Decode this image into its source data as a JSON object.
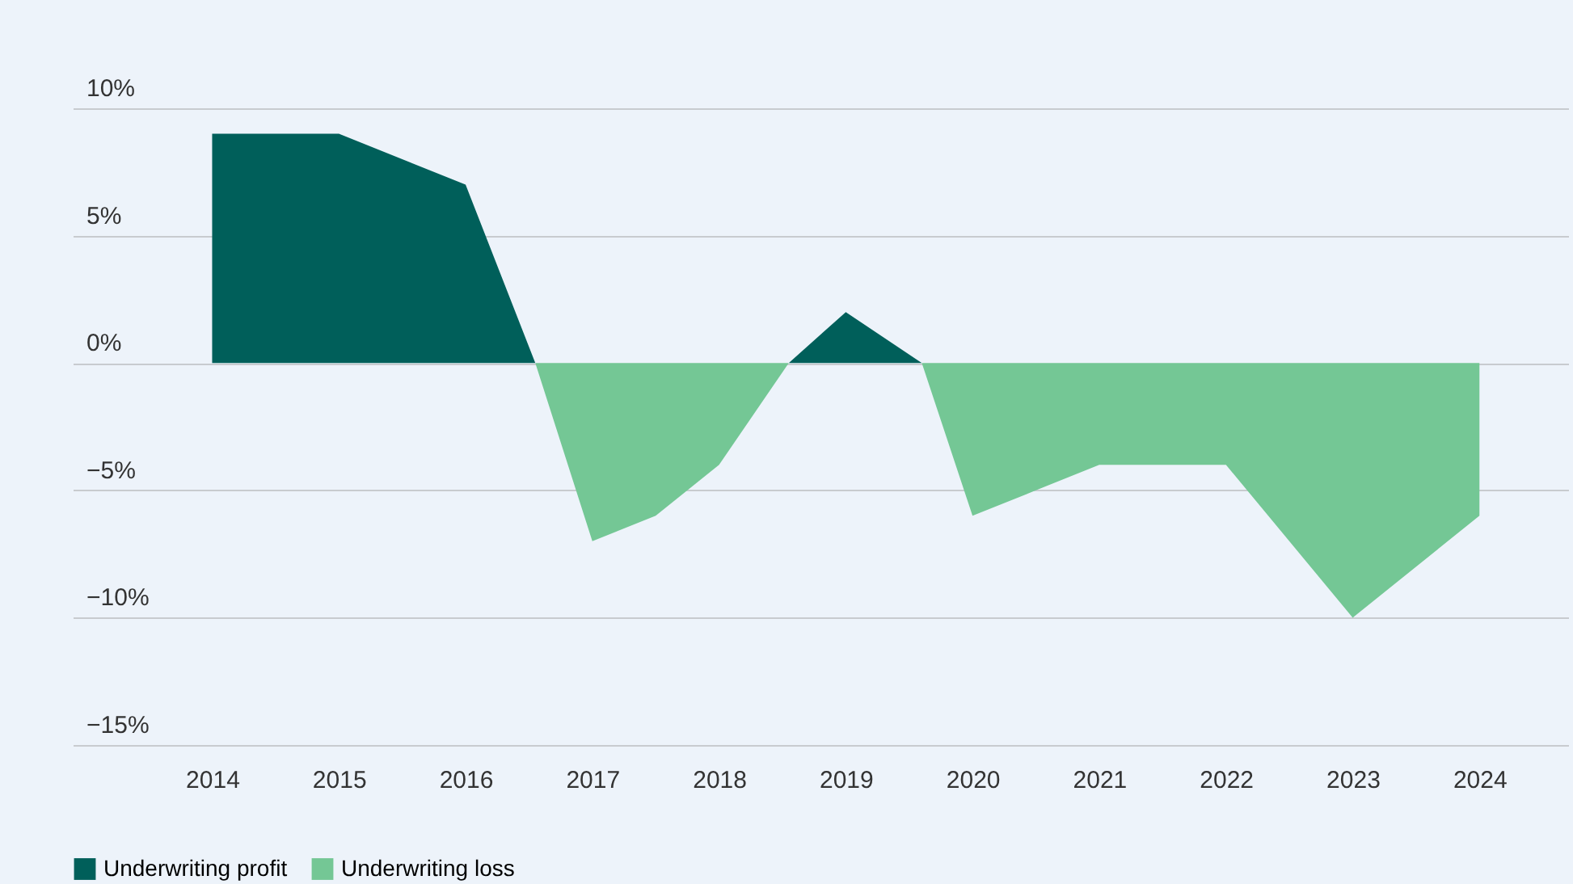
{
  "chart_data": {
    "type": "area",
    "xlim": [
      2012.9,
      2024.7
    ],
    "xticks": [
      2014,
      2015,
      2016,
      2017,
      2018,
      2019,
      2020,
      2021,
      2022,
      2023,
      2024
    ],
    "ylim": [
      -15,
      10
    ],
    "yticks": [
      {
        "value": 10,
        "label": "10%"
      },
      {
        "value": 5,
        "label": "5%"
      },
      {
        "value": 0,
        "label": "0%"
      },
      {
        "value": -5,
        "label": "−5%"
      },
      {
        "value": -10,
        "label": "−10%"
      },
      {
        "value": -15,
        "label": "−15%"
      }
    ],
    "grid": "y",
    "legend": "bottom left",
    "series": [
      {
        "name": "Underwriting profit",
        "color": "#005f5a",
        "x": [
          2014,
          2015,
          2016,
          2016.55,
          2018.55,
          2019,
          2019.6
        ],
        "values": [
          9,
          9,
          7,
          0,
          0,
          2,
          0
        ]
      },
      {
        "name": "Underwriting loss",
        "color": "#74c795",
        "x": [
          2016.55,
          2017,
          2017.5,
          2018,
          2018.55,
          2019.6,
          2020,
          2020.5,
          2021,
          2022,
          2023,
          2024
        ],
        "values": [
          0,
          -7,
          -6,
          -4,
          0,
          0,
          -6,
          -5,
          -4,
          -4,
          -10,
          -6
        ]
      }
    ]
  }
}
